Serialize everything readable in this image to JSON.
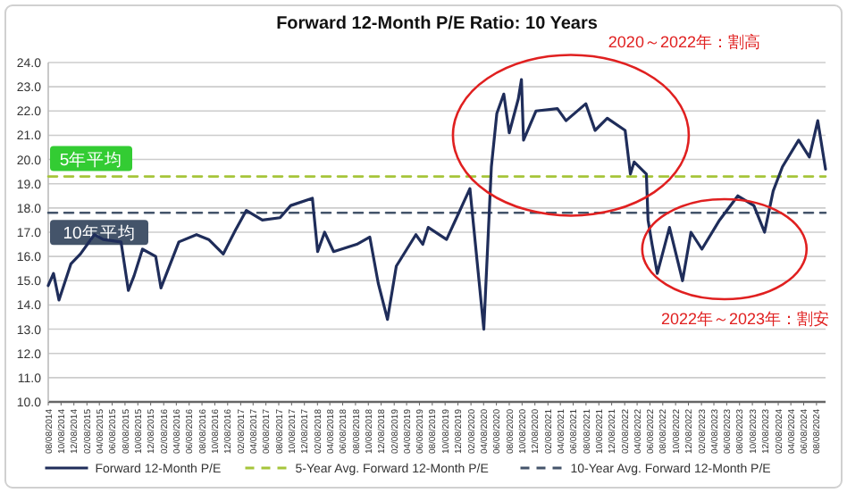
{
  "chart_data": {
    "type": "line",
    "title": "Forward 12-Month P/E Ratio: 10 Years",
    "xlim": [
      "2014-08-08",
      "2024-09-20"
    ],
    "ylim": [
      10,
      24
    ],
    "yticks": [
      {
        "value": 10,
        "label": "10.0"
      },
      {
        "value": 11,
        "label": "11.0"
      },
      {
        "value": 12,
        "label": "12.0"
      },
      {
        "value": 13,
        "label": "13.0"
      },
      {
        "value": 14,
        "label": "14.0"
      },
      {
        "value": 15,
        "label": "15.0"
      },
      {
        "value": 16,
        "label": "16.0"
      },
      {
        "value": 17,
        "label": "17.0"
      },
      {
        "value": 18,
        "label": "18.0"
      },
      {
        "value": 19,
        "label": "19.0"
      },
      {
        "value": 20,
        "label": "20.0"
      },
      {
        "value": 21,
        "label": "21.0"
      },
      {
        "value": 22,
        "label": "22.0"
      },
      {
        "value": 23,
        "label": "23.0"
      },
      {
        "value": 24,
        "label": "24.0"
      }
    ],
    "grid": "y",
    "legend": "bottom",
    "marker": "none",
    "xticks": [
      {
        "value": "2014-08-08",
        "label": "08/08/2014"
      },
      {
        "value": "2014-10-08",
        "label": "10/08/2014"
      },
      {
        "value": "2014-12-08",
        "label": "12/08/2014"
      },
      {
        "value": "2015-02-08",
        "label": "02/08/2015"
      },
      {
        "value": "2015-04-08",
        "label": "04/08/2015"
      },
      {
        "value": "2015-06-08",
        "label": "06/08/2015"
      },
      {
        "value": "2015-08-08",
        "label": "08/08/2015"
      },
      {
        "value": "2015-10-08",
        "label": "10/08/2015"
      },
      {
        "value": "2015-12-08",
        "label": "12/08/2015"
      },
      {
        "value": "2016-02-08",
        "label": "02/08/2016"
      },
      {
        "value": "2016-04-08",
        "label": "04/08/2016"
      },
      {
        "value": "2016-06-08",
        "label": "06/08/2016"
      },
      {
        "value": "2016-08-08",
        "label": "08/08/2016"
      },
      {
        "value": "2016-10-08",
        "label": "10/08/2016"
      },
      {
        "value": "2016-12-08",
        "label": "12/08/2016"
      },
      {
        "value": "2017-02-08",
        "label": "02/08/2017"
      },
      {
        "value": "2017-04-08",
        "label": "04/08/2017"
      },
      {
        "value": "2017-06-08",
        "label": "06/08/2017"
      },
      {
        "value": "2017-08-08",
        "label": "08/08/2017"
      },
      {
        "value": "2017-10-08",
        "label": "10/08/2017"
      },
      {
        "value": "2017-12-08",
        "label": "12/08/2017"
      },
      {
        "value": "2018-02-08",
        "label": "02/08/2018"
      },
      {
        "value": "2018-04-08",
        "label": "04/08/2018"
      },
      {
        "value": "2018-06-08",
        "label": "06/08/2018"
      },
      {
        "value": "2018-08-08",
        "label": "08/08/2018"
      },
      {
        "value": "2018-10-08",
        "label": "10/08/2018"
      },
      {
        "value": "2018-12-08",
        "label": "12/08/2018"
      },
      {
        "value": "2019-02-08",
        "label": "02/08/2019"
      },
      {
        "value": "2019-04-08",
        "label": "04/08/2019"
      },
      {
        "value": "2019-06-08",
        "label": "06/08/2019"
      },
      {
        "value": "2019-08-08",
        "label": "08/08/2019"
      },
      {
        "value": "2019-10-08",
        "label": "10/08/2019"
      },
      {
        "value": "2019-12-08",
        "label": "12/08/2019"
      },
      {
        "value": "2020-02-08",
        "label": "02/08/2020"
      },
      {
        "value": "2020-04-08",
        "label": "04/08/2020"
      },
      {
        "value": "2020-06-08",
        "label": "06/08/2020"
      },
      {
        "value": "2020-08-08",
        "label": "08/08/2020"
      },
      {
        "value": "2020-10-08",
        "label": "10/08/2020"
      },
      {
        "value": "2020-12-08",
        "label": "12/08/2020"
      },
      {
        "value": "2021-02-08",
        "label": "02/08/2021"
      },
      {
        "value": "2021-04-08",
        "label": "04/08/2021"
      },
      {
        "value": "2021-06-08",
        "label": "06/08/2021"
      },
      {
        "value": "2021-08-08",
        "label": "08/08/2021"
      },
      {
        "value": "2021-10-08",
        "label": "10/08/2021"
      },
      {
        "value": "2021-12-08",
        "label": "12/08/2021"
      },
      {
        "value": "2022-02-08",
        "label": "02/08/2022"
      },
      {
        "value": "2022-04-08",
        "label": "04/08/2022"
      },
      {
        "value": "2022-06-08",
        "label": "06/08/2022"
      },
      {
        "value": "2022-08-08",
        "label": "08/08/2022"
      },
      {
        "value": "2022-10-08",
        "label": "10/08/2022"
      },
      {
        "value": "2022-12-08",
        "label": "12/08/2022"
      },
      {
        "value": "2023-02-08",
        "label": "02/08/2023"
      },
      {
        "value": "2023-04-08",
        "label": "04/08/2023"
      },
      {
        "value": "2023-06-08",
        "label": "06/08/2023"
      },
      {
        "value": "2023-08-08",
        "label": "08/08/2023"
      },
      {
        "value": "2023-10-08",
        "label": "10/08/2023"
      },
      {
        "value": "2023-12-08",
        "label": "12/08/2023"
      },
      {
        "value": "2024-02-08",
        "label": "02/08/2024"
      },
      {
        "value": "2024-04-08",
        "label": "04/08/2024"
      },
      {
        "value": "2024-06-08",
        "label": "06/08/2024"
      },
      {
        "value": "2024-08-08",
        "label": "08/08/2024"
      }
    ],
    "series": [
      {
        "name": "Forward 12-Month P/E",
        "color": "#1f2d5a",
        "line_style": "solid",
        "x": [
          "2014-08-08",
          "2014-09-02",
          "2014-09-28",
          "2014-11-24",
          "2015-01-08",
          "2015-03-15",
          "2015-04-26",
          "2015-07-20",
          "2015-08-24",
          "2015-09-20",
          "2015-10-30",
          "2016-01-01",
          "2016-01-26",
          "2016-04-20",
          "2016-07-13",
          "2016-09-09",
          "2016-11-17",
          "2017-01-15",
          "2017-03-07",
          "2017-05-22",
          "2017-08-14",
          "2017-10-04",
          "2018-01-15",
          "2018-02-09",
          "2018-03-14",
          "2018-04-26",
          "2018-08-14",
          "2018-10-15",
          "2018-11-24",
          "2019-01-07",
          "2019-02-18",
          "2019-05-22",
          "2019-06-24",
          "2019-07-20",
          "2019-10-15",
          "2020-02-03",
          "2020-04-09",
          "2020-05-15",
          "2020-06-10",
          "2020-07-13",
          "2020-08-08",
          "2020-09-20",
          "2020-10-05",
          "2020-10-15",
          "2020-12-13",
          "2021-03-25",
          "2021-05-05",
          "2021-08-07",
          "2021-09-20",
          "2021-11-17",
          "2022-02-10",
          "2022-03-07",
          "2022-03-25",
          "2022-05-22",
          "2022-05-30",
          "2022-06-18",
          "2022-07-13",
          "2022-09-09",
          "2022-11-10",
          "2022-12-20",
          "2023-02-10",
          "2023-05-05",
          "2023-07-31",
          "2023-10-15",
          "2023-12-05",
          "2024-01-15",
          "2024-02-28",
          "2024-05-15",
          "2024-07-05",
          "2024-08-14",
          "2024-09-20"
        ],
        "values": [
          14.8,
          15.3,
          14.2,
          15.7,
          16.1,
          16.9,
          16.7,
          16.6,
          14.6,
          15.2,
          16.3,
          16.0,
          14.7,
          16.6,
          16.9,
          16.7,
          16.1,
          17.1,
          17.9,
          17.5,
          17.6,
          18.1,
          18.4,
          16.2,
          17.0,
          16.2,
          16.5,
          16.8,
          14.9,
          13.4,
          15.6,
          16.9,
          16.5,
          17.2,
          16.7,
          18.8,
          13.0,
          19.7,
          21.9,
          22.7,
          21.1,
          22.5,
          23.3,
          20.8,
          22.0,
          22.1,
          21.6,
          22.3,
          21.2,
          21.7,
          21.2,
          19.4,
          19.9,
          19.4,
          17.5,
          16.5,
          15.3,
          17.2,
          15.0,
          17.0,
          16.3,
          17.5,
          18.5,
          18.1,
          17.0,
          18.7,
          19.7,
          20.8,
          20.1,
          21.6,
          19.6
        ]
      },
      {
        "name": "5-Year Avg. Forward 12-Month P/E",
        "color": "#a6c53a",
        "line_style": "dashed",
        "x": [
          "2014-08-08",
          "2024-09-20"
        ],
        "values": [
          19.3,
          19.3
        ]
      },
      {
        "name": "10-Year Avg. Forward 12-Month P/E",
        "color": "#44546a",
        "line_style": "dashed",
        "x": [
          "2014-08-08",
          "2024-09-20"
        ],
        "values": [
          17.8,
          17.8
        ]
      }
    ],
    "annotations": [
      {
        "text": "5年平均",
        "x": "2014-08-08",
        "y": 19.3
      },
      {
        "text": "10年平均",
        "x": "2014-08-08",
        "y": 17.8
      },
      "2020～2022年：割高",
      "2022年～2023年：割安"
    ]
  }
}
